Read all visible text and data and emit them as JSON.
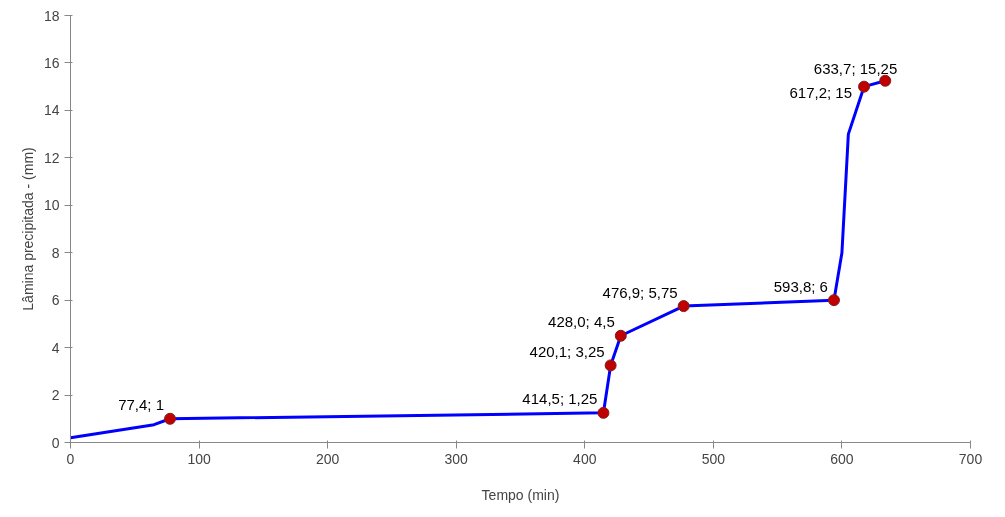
{
  "chart_data": {
    "type": "line",
    "xlabel": "Tempo (min)",
    "ylabel": "Lâmina precipitada - (mm)",
    "xlim": [
      0,
      700
    ],
    "xticks": [
      0,
      100,
      200,
      300,
      400,
      500,
      600,
      700
    ],
    "ylim": [
      0,
      18
    ],
    "yticks": [
      0,
      2,
      4,
      6,
      8,
      10,
      12,
      14,
      16,
      18
    ],
    "grid": false,
    "series": [
      {
        "color": "#0000ff",
        "marker": "none",
        "x": [
          0,
          65,
          77.4,
          414.5,
          420.1,
          428.0,
          476.9,
          593.8,
          600,
          605,
          617.2,
          633.7
        ],
        "values": [
          0.2,
          0.75,
          1,
          1.25,
          3.25,
          4.5,
          5.75,
          6,
          8,
          13,
          15,
          15.25
        ]
      },
      {
        "type": "scatter",
        "color": "#c00000",
        "marker": "circle",
        "x": [
          77.4,
          414.5,
          420.1,
          428.0,
          476.9,
          593.8,
          617.2,
          633.7
        ],
        "values": [
          1,
          1.25,
          3.25,
          4.5,
          5.75,
          6,
          15,
          15.25
        ],
        "value_labels": [
          "77,4; 1",
          "414,5; 1,25",
          "420,1; 3,25",
          "428,0; 4,5",
          "476,9; 5,75",
          "593,8; 6",
          "617,2; 15",
          "633,7; 15,25"
        ]
      }
    ]
  }
}
